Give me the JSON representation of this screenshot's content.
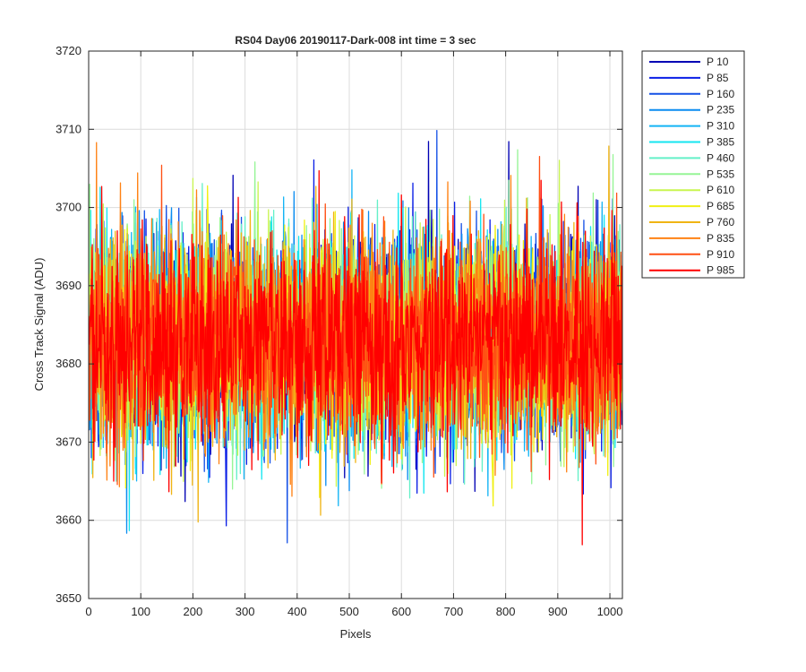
{
  "chart_data": {
    "type": "line",
    "title": "RS04 Day06 20190117-Dark-008 int time = 3 sec",
    "xlabel": "Pixels",
    "ylabel": "Cross Track Signal (ADU)",
    "xlim": [
      0,
      1024
    ],
    "ylim": [
      3650,
      3720
    ],
    "xticks": [
      0,
      100,
      200,
      300,
      400,
      500,
      600,
      700,
      800,
      900,
      1000
    ],
    "yticks": [
      3650,
      3660,
      3670,
      3680,
      3690,
      3700,
      3710,
      3720
    ],
    "grid": true,
    "legend_position": "outside-top-right",
    "x_range": [
      1,
      1024
    ],
    "noise": {
      "center": 3683,
      "sigma": 6.5
    },
    "series": [
      {
        "name": "P 10",
        "color": "#0000b4"
      },
      {
        "name": "P 85",
        "color": "#0a1ee6"
      },
      {
        "name": "P 160",
        "color": "#1450e6"
      },
      {
        "name": "P 235",
        "color": "#0a8cf0"
      },
      {
        "name": "P 310",
        "color": "#14b4f5"
      },
      {
        "name": "P 385",
        "color": "#14e6f0"
      },
      {
        "name": "P 460",
        "color": "#64f0c8"
      },
      {
        "name": "P 535",
        "color": "#96f596"
      },
      {
        "name": "P 610",
        "color": "#c8f550"
      },
      {
        "name": "P 685",
        "color": "#f0f014"
      },
      {
        "name": "P 760",
        "color": "#f0b414"
      },
      {
        "name": "P 835",
        "color": "#ff8214"
      },
      {
        "name": "P 910",
        "color": "#ff5014"
      },
      {
        "name": "P 985",
        "color": "#ff0000"
      }
    ]
  }
}
